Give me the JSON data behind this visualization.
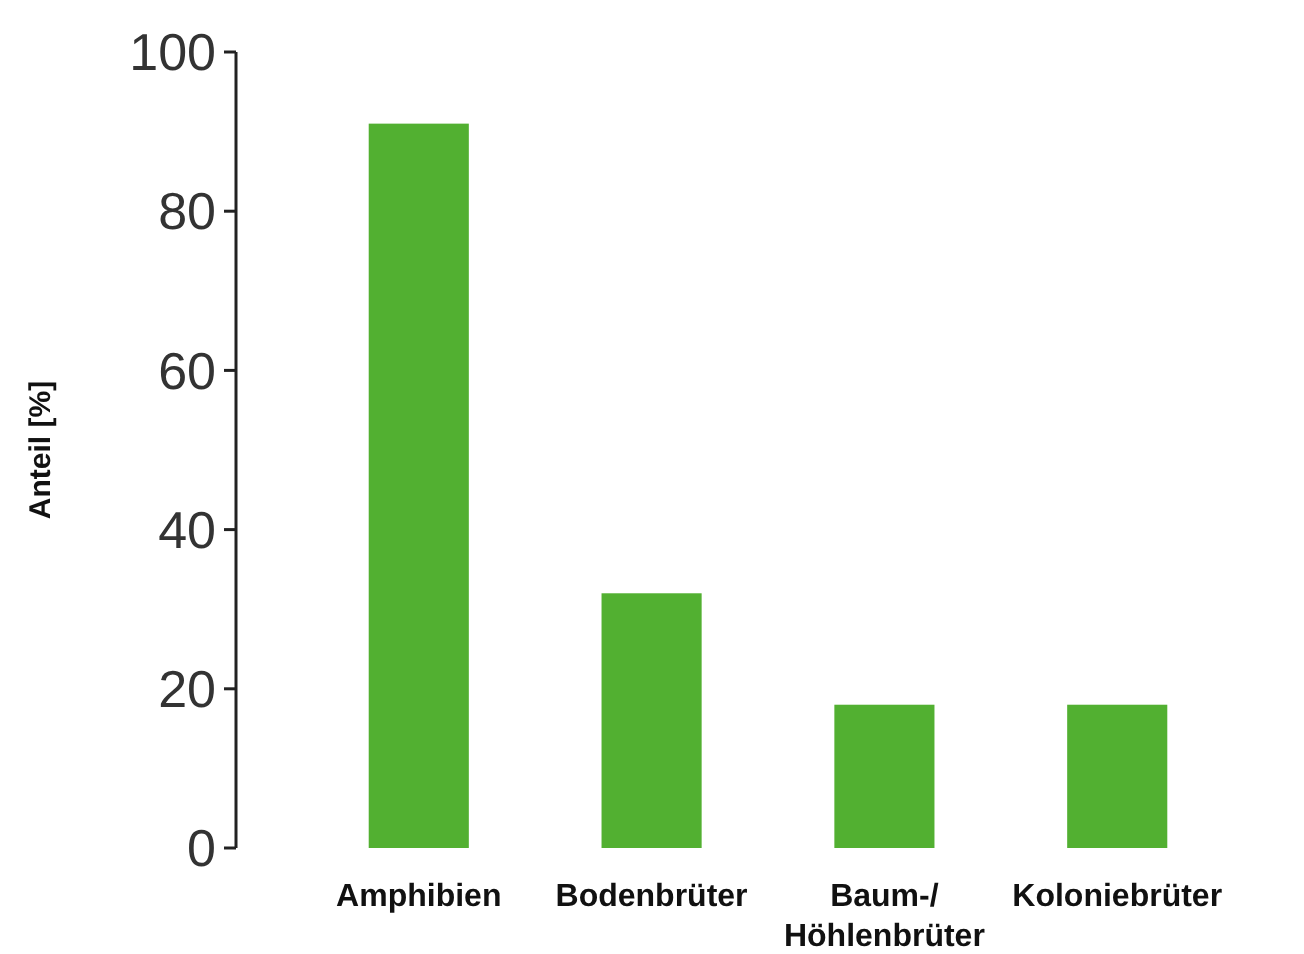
{
  "chart_data": {
    "type": "bar",
    "ylabel": "Anteil [%]",
    "categories": [
      "Amphibien",
      "Bodenbrüter",
      "Baum-/\nHöhlenbrüter",
      "Koloniebrüter"
    ],
    "values": [
      91,
      32,
      18,
      18
    ],
    "color": "#52b031",
    "ylim": [
      0,
      100
    ],
    "yticks": [
      0,
      20,
      40,
      60,
      80,
      100
    ],
    "grid": false
  }
}
